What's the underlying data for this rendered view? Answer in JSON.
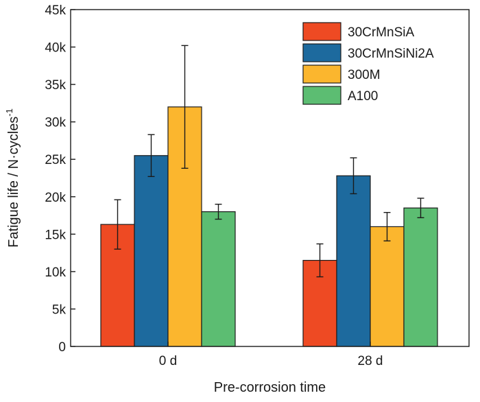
{
  "chart_data": {
    "type": "bar",
    "categories": [
      "0 d",
      "28 d"
    ],
    "series": [
      {
        "name": "30CrMnSiA",
        "color": "#EE4A23",
        "values": [
          16300,
          11500
        ],
        "errors": [
          3300,
          2200
        ]
      },
      {
        "name": "30CrMnSiNi2A",
        "color": "#1D6A9E",
        "values": [
          25500,
          22800
        ],
        "errors": [
          2800,
          2400
        ]
      },
      {
        "name": "300M",
        "color": "#FBB62E",
        "values": [
          32000,
          16000
        ],
        "errors": [
          8200,
          1900
        ]
      },
      {
        "name": "A100",
        "color": "#5CBD72",
        "values": [
          18000,
          18500
        ],
        "errors": [
          1000,
          1300
        ]
      }
    ],
    "xlabel": "Pre-corrosion time",
    "ylabel": "Fatigue life / N·cycles",
    "ylabel_sup": "-1",
    "ylim": [
      0,
      45000
    ],
    "yticks": [
      0,
      5000,
      10000,
      15000,
      20000,
      25000,
      30000,
      35000,
      40000,
      45000
    ],
    "ytick_labels": [
      "0",
      "5k",
      "10k",
      "15k",
      "20k",
      "25k",
      "30k",
      "35k",
      "40k",
      "45k"
    ],
    "grid": false,
    "legend_position": "top-right"
  }
}
